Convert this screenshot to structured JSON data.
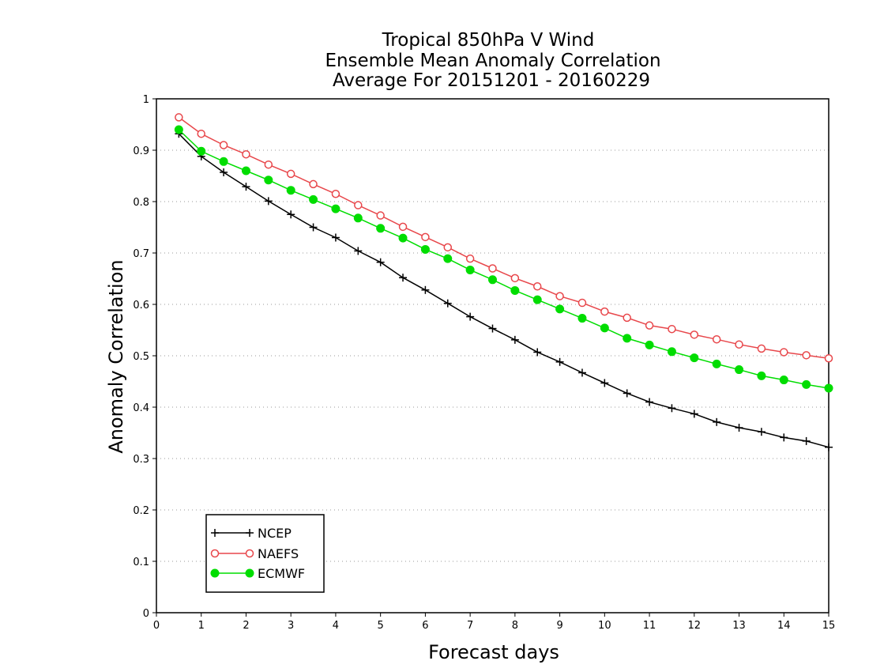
{
  "colors": {
    "ncep": "#000000",
    "naefs": "#e8474b",
    "ecmwf": "#00dd00"
  },
  "chart_data": {
    "type": "line",
    "title_lines": [
      "Tropical 850hPa V Wind",
      "Ensemble Mean Anomaly Correlation",
      "Average For 20151201 - 20160229"
    ],
    "xlabel": "Forecast days",
    "ylabel": "Anomaly Correlation",
    "xlim": [
      0,
      15
    ],
    "ylim": [
      0,
      1
    ],
    "x_ticks": [
      0,
      1,
      2,
      3,
      4,
      5,
      6,
      7,
      8,
      9,
      10,
      11,
      12,
      13,
      14,
      15
    ],
    "y_ticks": [
      0,
      0.1,
      0.2,
      0.3,
      0.4,
      0.5,
      0.6,
      0.7,
      0.8,
      0.9,
      1
    ],
    "y_tick_labels": [
      "0",
      "0.1",
      "0.2",
      "0.3",
      "0.4",
      "0.5",
      "0.6",
      "0.7",
      "0.8",
      "0.9",
      "1"
    ],
    "grid": "horizontal dotted",
    "legend_position": "bottom-left",
    "x": [
      0.5,
      1,
      1.5,
      2,
      2.5,
      3,
      3.5,
      4,
      4.5,
      5,
      5.5,
      6,
      6.5,
      7,
      7.5,
      8,
      8.5,
      9,
      9.5,
      10,
      10.5,
      11,
      11.5,
      12,
      12.5,
      13,
      13.5,
      14,
      14.5,
      15
    ],
    "series": [
      {
        "name": "NCEP",
        "marker": "plus",
        "color": "#000000",
        "values": [
          0.932,
          0.888,
          0.857,
          0.829,
          0.801,
          0.775,
          0.75,
          0.73,
          0.704,
          0.682,
          0.652,
          0.628,
          0.602,
          0.576,
          0.553,
          0.531,
          0.507,
          0.488,
          0.467,
          0.447,
          0.427,
          0.41,
          0.398,
          0.387,
          0.371,
          0.36,
          0.352,
          0.341,
          0.334,
          0.322
        ]
      },
      {
        "name": "NAEFS",
        "marker": "open-circle",
        "color": "#e8474b",
        "values": [
          0.964,
          0.932,
          0.91,
          0.892,
          0.872,
          0.854,
          0.834,
          0.815,
          0.793,
          0.773,
          0.751,
          0.731,
          0.711,
          0.689,
          0.67,
          0.651,
          0.635,
          0.616,
          0.603,
          0.586,
          0.574,
          0.559,
          0.552,
          0.541,
          0.532,
          0.522,
          0.514,
          0.507,
          0.501,
          0.495
        ]
      },
      {
        "name": "ECMWF",
        "marker": "filled-circle",
        "color": "#00dd00",
        "values": [
          0.94,
          0.898,
          0.878,
          0.86,
          0.842,
          0.822,
          0.804,
          0.786,
          0.768,
          0.748,
          0.729,
          0.707,
          0.689,
          0.667,
          0.648,
          0.627,
          0.609,
          0.591,
          0.573,
          0.554,
          0.534,
          0.521,
          0.508,
          0.496,
          0.484,
          0.473,
          0.461,
          0.453,
          0.444,
          0.437
        ]
      }
    ]
  }
}
